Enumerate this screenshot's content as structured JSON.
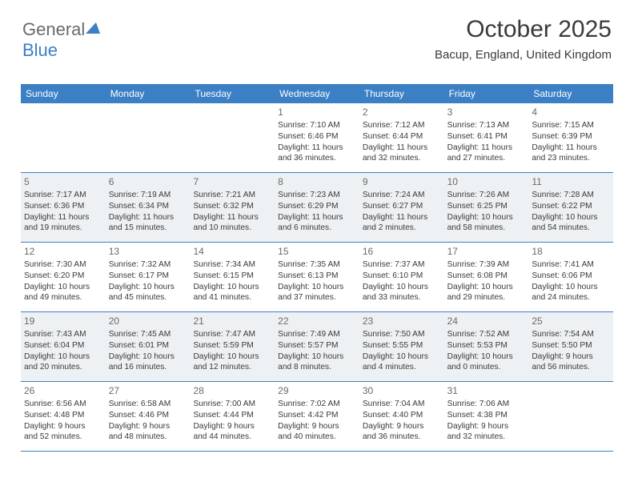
{
  "logo": {
    "text1": "General",
    "text2": "Blue"
  },
  "header": {
    "month": "October 2025",
    "location": "Bacup, England, United Kingdom"
  },
  "colors": {
    "header_bg": "#3b7fc4",
    "header_text": "#ffffff",
    "alt_row_bg": "#eef1f3",
    "text": "#3a3a3a",
    "logo_gray": "#6a6a6a",
    "logo_blue": "#3b7fc4"
  },
  "day_labels": [
    "Sunday",
    "Monday",
    "Tuesday",
    "Wednesday",
    "Thursday",
    "Friday",
    "Saturday"
  ],
  "weeks": [
    {
      "alt": false,
      "cells": [
        {
          "n": "",
          "sr": "",
          "ss": "",
          "dl1": "",
          "dl2": ""
        },
        {
          "n": "",
          "sr": "",
          "ss": "",
          "dl1": "",
          "dl2": ""
        },
        {
          "n": "",
          "sr": "",
          "ss": "",
          "dl1": "",
          "dl2": ""
        },
        {
          "n": "1",
          "sr": "Sunrise: 7:10 AM",
          "ss": "Sunset: 6:46 PM",
          "dl1": "Daylight: 11 hours",
          "dl2": "and 36 minutes."
        },
        {
          "n": "2",
          "sr": "Sunrise: 7:12 AM",
          "ss": "Sunset: 6:44 PM",
          "dl1": "Daylight: 11 hours",
          "dl2": "and 32 minutes."
        },
        {
          "n": "3",
          "sr": "Sunrise: 7:13 AM",
          "ss": "Sunset: 6:41 PM",
          "dl1": "Daylight: 11 hours",
          "dl2": "and 27 minutes."
        },
        {
          "n": "4",
          "sr": "Sunrise: 7:15 AM",
          "ss": "Sunset: 6:39 PM",
          "dl1": "Daylight: 11 hours",
          "dl2": "and 23 minutes."
        }
      ]
    },
    {
      "alt": true,
      "cells": [
        {
          "n": "5",
          "sr": "Sunrise: 7:17 AM",
          "ss": "Sunset: 6:36 PM",
          "dl1": "Daylight: 11 hours",
          "dl2": "and 19 minutes."
        },
        {
          "n": "6",
          "sr": "Sunrise: 7:19 AM",
          "ss": "Sunset: 6:34 PM",
          "dl1": "Daylight: 11 hours",
          "dl2": "and 15 minutes."
        },
        {
          "n": "7",
          "sr": "Sunrise: 7:21 AM",
          "ss": "Sunset: 6:32 PM",
          "dl1": "Daylight: 11 hours",
          "dl2": "and 10 minutes."
        },
        {
          "n": "8",
          "sr": "Sunrise: 7:23 AM",
          "ss": "Sunset: 6:29 PM",
          "dl1": "Daylight: 11 hours",
          "dl2": "and 6 minutes."
        },
        {
          "n": "9",
          "sr": "Sunrise: 7:24 AM",
          "ss": "Sunset: 6:27 PM",
          "dl1": "Daylight: 11 hours",
          "dl2": "and 2 minutes."
        },
        {
          "n": "10",
          "sr": "Sunrise: 7:26 AM",
          "ss": "Sunset: 6:25 PM",
          "dl1": "Daylight: 10 hours",
          "dl2": "and 58 minutes."
        },
        {
          "n": "11",
          "sr": "Sunrise: 7:28 AM",
          "ss": "Sunset: 6:22 PM",
          "dl1": "Daylight: 10 hours",
          "dl2": "and 54 minutes."
        }
      ]
    },
    {
      "alt": false,
      "cells": [
        {
          "n": "12",
          "sr": "Sunrise: 7:30 AM",
          "ss": "Sunset: 6:20 PM",
          "dl1": "Daylight: 10 hours",
          "dl2": "and 49 minutes."
        },
        {
          "n": "13",
          "sr": "Sunrise: 7:32 AM",
          "ss": "Sunset: 6:17 PM",
          "dl1": "Daylight: 10 hours",
          "dl2": "and 45 minutes."
        },
        {
          "n": "14",
          "sr": "Sunrise: 7:34 AM",
          "ss": "Sunset: 6:15 PM",
          "dl1": "Daylight: 10 hours",
          "dl2": "and 41 minutes."
        },
        {
          "n": "15",
          "sr": "Sunrise: 7:35 AM",
          "ss": "Sunset: 6:13 PM",
          "dl1": "Daylight: 10 hours",
          "dl2": "and 37 minutes."
        },
        {
          "n": "16",
          "sr": "Sunrise: 7:37 AM",
          "ss": "Sunset: 6:10 PM",
          "dl1": "Daylight: 10 hours",
          "dl2": "and 33 minutes."
        },
        {
          "n": "17",
          "sr": "Sunrise: 7:39 AM",
          "ss": "Sunset: 6:08 PM",
          "dl1": "Daylight: 10 hours",
          "dl2": "and 29 minutes."
        },
        {
          "n": "18",
          "sr": "Sunrise: 7:41 AM",
          "ss": "Sunset: 6:06 PM",
          "dl1": "Daylight: 10 hours",
          "dl2": "and 24 minutes."
        }
      ]
    },
    {
      "alt": true,
      "cells": [
        {
          "n": "19",
          "sr": "Sunrise: 7:43 AM",
          "ss": "Sunset: 6:04 PM",
          "dl1": "Daylight: 10 hours",
          "dl2": "and 20 minutes."
        },
        {
          "n": "20",
          "sr": "Sunrise: 7:45 AM",
          "ss": "Sunset: 6:01 PM",
          "dl1": "Daylight: 10 hours",
          "dl2": "and 16 minutes."
        },
        {
          "n": "21",
          "sr": "Sunrise: 7:47 AM",
          "ss": "Sunset: 5:59 PM",
          "dl1": "Daylight: 10 hours",
          "dl2": "and 12 minutes."
        },
        {
          "n": "22",
          "sr": "Sunrise: 7:49 AM",
          "ss": "Sunset: 5:57 PM",
          "dl1": "Daylight: 10 hours",
          "dl2": "and 8 minutes."
        },
        {
          "n": "23",
          "sr": "Sunrise: 7:50 AM",
          "ss": "Sunset: 5:55 PM",
          "dl1": "Daylight: 10 hours",
          "dl2": "and 4 minutes."
        },
        {
          "n": "24",
          "sr": "Sunrise: 7:52 AM",
          "ss": "Sunset: 5:53 PM",
          "dl1": "Daylight: 10 hours",
          "dl2": "and 0 minutes."
        },
        {
          "n": "25",
          "sr": "Sunrise: 7:54 AM",
          "ss": "Sunset: 5:50 PM",
          "dl1": "Daylight: 9 hours",
          "dl2": "and 56 minutes."
        }
      ]
    },
    {
      "alt": false,
      "cells": [
        {
          "n": "26",
          "sr": "Sunrise: 6:56 AM",
          "ss": "Sunset: 4:48 PM",
          "dl1": "Daylight: 9 hours",
          "dl2": "and 52 minutes."
        },
        {
          "n": "27",
          "sr": "Sunrise: 6:58 AM",
          "ss": "Sunset: 4:46 PM",
          "dl1": "Daylight: 9 hours",
          "dl2": "and 48 minutes."
        },
        {
          "n": "28",
          "sr": "Sunrise: 7:00 AM",
          "ss": "Sunset: 4:44 PM",
          "dl1": "Daylight: 9 hours",
          "dl2": "and 44 minutes."
        },
        {
          "n": "29",
          "sr": "Sunrise: 7:02 AM",
          "ss": "Sunset: 4:42 PM",
          "dl1": "Daylight: 9 hours",
          "dl2": "and 40 minutes."
        },
        {
          "n": "30",
          "sr": "Sunrise: 7:04 AM",
          "ss": "Sunset: 4:40 PM",
          "dl1": "Daylight: 9 hours",
          "dl2": "and 36 minutes."
        },
        {
          "n": "31",
          "sr": "Sunrise: 7:06 AM",
          "ss": "Sunset: 4:38 PM",
          "dl1": "Daylight: 9 hours",
          "dl2": "and 32 minutes."
        },
        {
          "n": "",
          "sr": "",
          "ss": "",
          "dl1": "",
          "dl2": ""
        }
      ]
    }
  ]
}
